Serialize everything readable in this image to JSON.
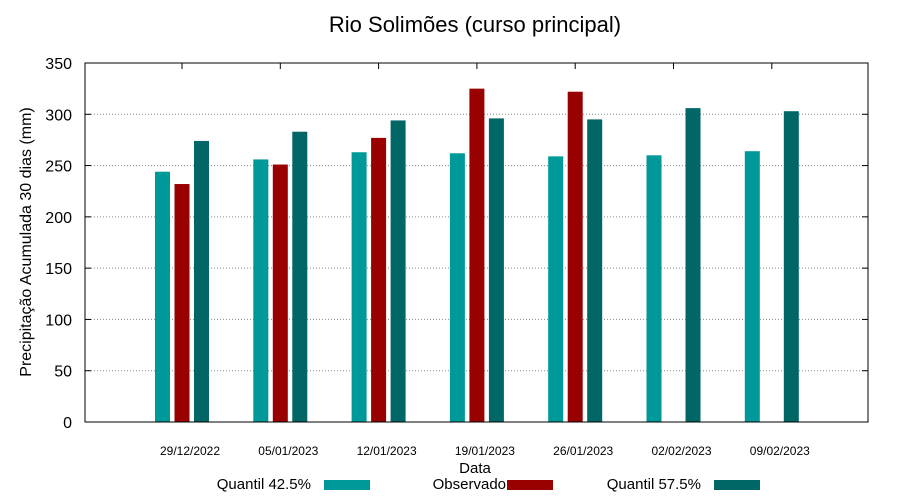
{
  "chart_data": {
    "type": "bar",
    "title": "Rio Solimões (curso principal)",
    "xlabel": "Data",
    "ylabel": "Precipitação Acumulada 30 dias (mm)",
    "ylim": [
      0,
      350
    ],
    "yticks": [
      0,
      50,
      100,
      150,
      200,
      250,
      300,
      350
    ],
    "grid": true,
    "legend_position": "bottom",
    "categories": [
      "29/12/2022",
      "05/01/2023",
      "12/01/2023",
      "19/01/2023",
      "26/01/2023",
      "02/02/2023",
      "09/02/2023"
    ],
    "series": [
      {
        "name": "Quantil 42.5%",
        "color": "#009999",
        "values": [
          244,
          256,
          263,
          262,
          259,
          260,
          264
        ]
      },
      {
        "name": "Observado",
        "color": "#990000",
        "values": [
          232,
          251,
          277,
          325,
          322,
          null,
          null
        ]
      },
      {
        "name": "Quantil 57.5%",
        "color": "#006666",
        "values": [
          274,
          283,
          294,
          296,
          295,
          306,
          303
        ]
      }
    ]
  }
}
